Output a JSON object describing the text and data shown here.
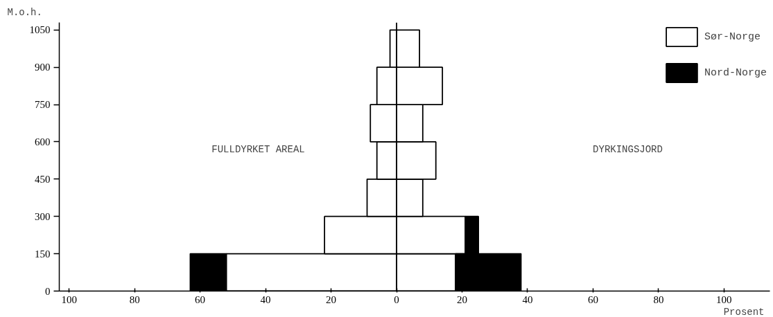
{
  "chart_data": {
    "type": "bar",
    "orientation": "horizontal",
    "stacked": true,
    "x": [
      75,
      225,
      375,
      525,
      675,
      825,
      975
    ],
    "series": [
      {
        "name": "Sør-Norge",
        "color": "#ffffff",
        "values": [
          -52,
          -22,
          -9,
          -6,
          -8,
          -6,
          -2
        ]
      },
      {
        "color": "#ffffff",
        "values": [
          18,
          21,
          8,
          12,
          8,
          14,
          7
        ]
      },
      {
        "name": "Nord-Norge",
        "color": "#000000",
        "values": [
          -11,
          null,
          null,
          null,
          null,
          null,
          null
        ]
      },
      {
        "color": "#000000",
        "values": [
          20,
          4,
          null,
          null,
          null,
          null,
          null
        ]
      }
    ],
    "xlim": [
      -103,
      114
    ],
    "xticks": [
      {
        "value": -100,
        "label": "100"
      },
      {
        "value": -80,
        "label": "80"
      },
      {
        "value": -60,
        "label": "60"
      },
      {
        "value": -40,
        "label": "40"
      },
      {
        "value": -20,
        "label": "20"
      },
      0,
      20,
      40,
      60,
      80,
      100
    ],
    "ylim": [
      0,
      1080
    ],
    "yticks": [
      0,
      150,
      300,
      450,
      600,
      750,
      900,
      1050
    ],
    "xlabel": "Prosent",
    "ylabel": "M.o.h.",
    "annotations": [
      "FULLDYRKET AREAL",
      "DYRKINGSJORD"
    ],
    "ref_lines": [
      {
        "axis": "x",
        "value": 0,
        "color": "#000000"
      }
    ],
    "legend": "top right",
    "grid": false
  }
}
